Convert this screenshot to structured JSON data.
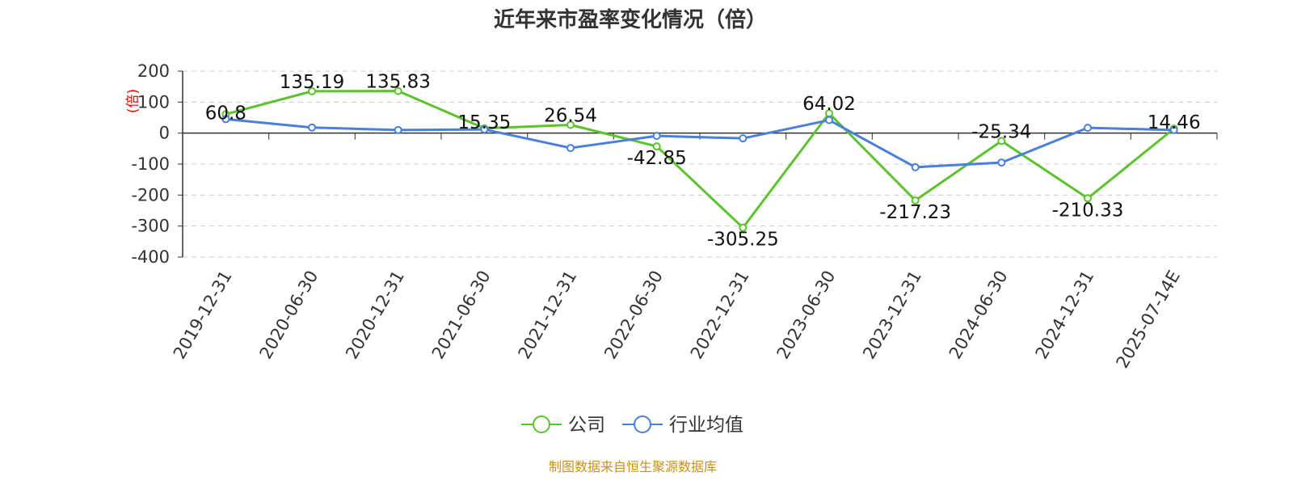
{
  "chart_data": {
    "type": "line",
    "title": "近年来市盈率变化情况（倍）",
    "ylabel": "(倍)",
    "ylim": [
      -400,
      200
    ],
    "yticks": [
      200,
      100,
      0,
      -100,
      -200,
      -300,
      -400
    ],
    "grid": true,
    "legend_position": "bottom-center",
    "categories": [
      "2019-12-31",
      "2020-06-30",
      "2020-12-31",
      "2021-06-30",
      "2021-12-31",
      "2022-06-30",
      "2022-12-31",
      "2023-06-30",
      "2023-12-31",
      "2024-06-30",
      "2024-12-31",
      "2025-07-14E"
    ],
    "series": [
      {
        "name": "公司",
        "color": "#5cc22d",
        "values": [
          60.8,
          135.19,
          135.83,
          15.35,
          26.54,
          -42.85,
          -305.25,
          64.02,
          -217.23,
          -25.34,
          -210.33,
          14.46
        ],
        "labels": [
          "60.8",
          "135.19",
          "135.83",
          "15.35",
          "26.54",
          "-42.85",
          "-305.25",
          "64.02",
          "-217.23",
          "-25.34",
          "-210.33",
          "14.46"
        ]
      },
      {
        "name": "行业均值",
        "color": "#4a7fdc",
        "values": [
          45,
          18,
          10,
          12,
          -48,
          -9,
          -17,
          42,
          -110,
          -95,
          17,
          10
        ]
      }
    ],
    "source": "制图数据来自恒生聚源数据库"
  }
}
